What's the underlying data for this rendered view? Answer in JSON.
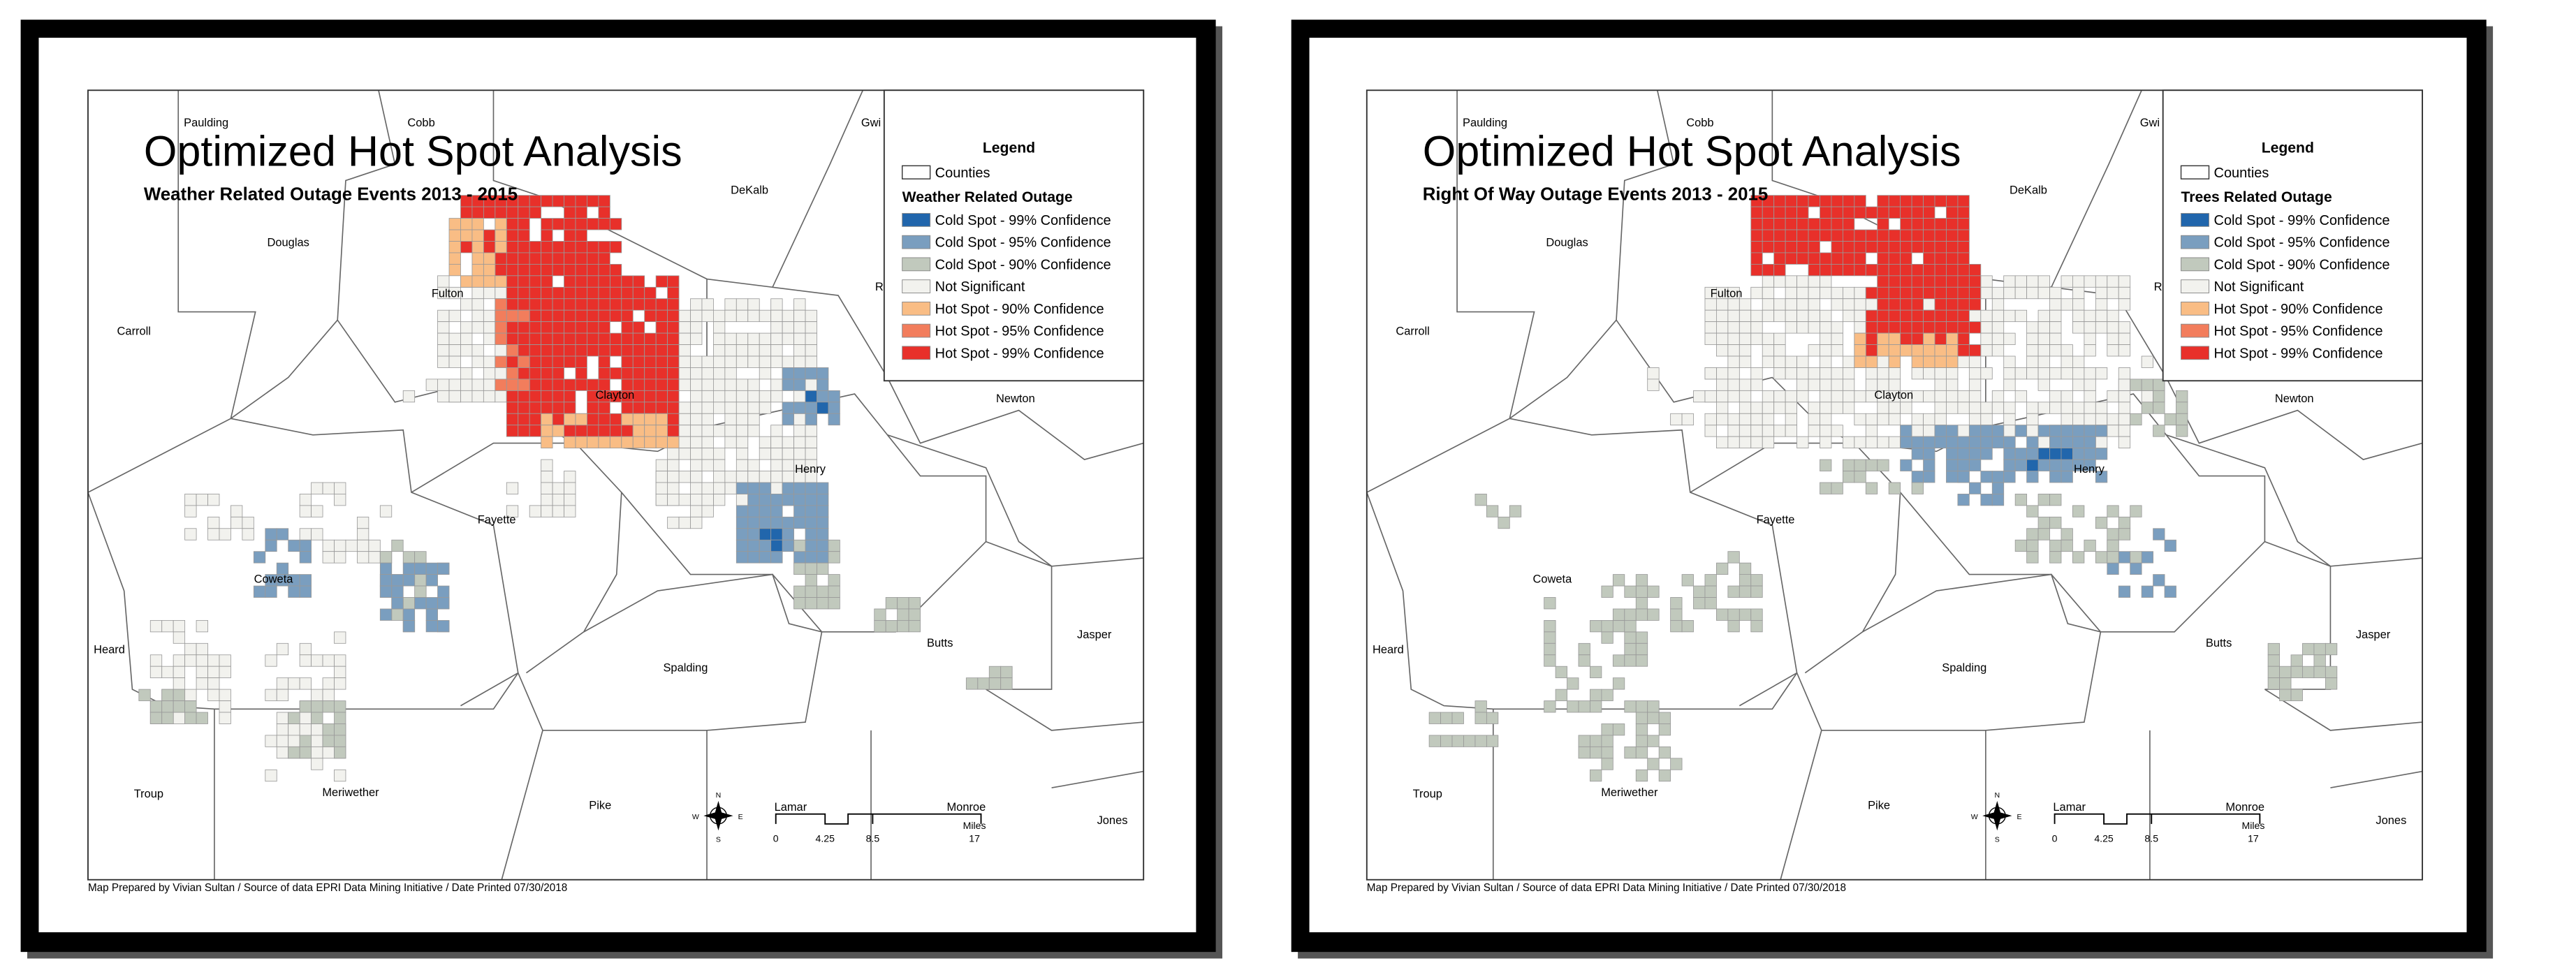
{
  "panels": [
    {
      "title": "Optimized Hot Spot Analysis",
      "subtitle": "Weather Related Outage Events 2013 - 2015",
      "legend": {
        "title": "Legend",
        "counties": "Counties",
        "layer_title": "Weather Related Outage",
        "items": [
          {
            "label": "Cold Spot - 99% Confidence",
            "color": "#2166ac"
          },
          {
            "label": "Cold Spot - 95% Confidence",
            "color": "#7a9ebf"
          },
          {
            "label": "Cold Spot - 90% Confidence",
            "color": "#c1c9bd"
          },
          {
            "label": "Not Significant",
            "color": "#f2f2ee"
          },
          {
            "label": "Hot Spot - 90% Confidence",
            "color": "#f9bd85"
          },
          {
            "label": "Hot Spot - 95% Confidence",
            "color": "#f27d5c"
          },
          {
            "label": "Hot Spot - 99% Confidence",
            "color": "#e8302a"
          }
        ]
      },
      "counties": [
        "Paulding",
        "Cobb",
        "Gwi",
        "DeKalb",
        "Douglas",
        "Fulton",
        "Carroll",
        "Clayton",
        "Newton",
        "Henry",
        "Fayette",
        "Coweta",
        "Heard",
        "Spalding",
        "Butts",
        "Jasper",
        "Troup",
        "Meriwether",
        "Pike",
        "Lamar",
        "Monroe",
        "Jones",
        "R"
      ],
      "scale": {
        "ticks": [
          "0",
          "4.25",
          "8.5",
          "17"
        ],
        "unit": "Miles"
      },
      "compass": {
        "n": "N",
        "s": "S",
        "e": "E",
        "w": "W"
      },
      "footer": "Map Prepared by Vivian Sultan / Source of data EPRI Data Mining Initiative / Date Printed 07/30/2018"
    },
    {
      "title": "Optimized Hot Spot Analysis",
      "subtitle": "Right Of Way Outage Events 2013 - 2015",
      "legend": {
        "title": "Legend",
        "counties": "Counties",
        "layer_title": "Trees Related Outage",
        "items": [
          {
            "label": "Cold Spot - 99% Confidence",
            "color": "#2166ac"
          },
          {
            "label": "Cold Spot - 95% Confidence",
            "color": "#7a9ebf"
          },
          {
            "label": "Cold Spot - 90% Confidence",
            "color": "#c1c9bd"
          },
          {
            "label": "Not Significant",
            "color": "#f2f2ee"
          },
          {
            "label": "Hot Spot - 90% Confidence",
            "color": "#f9bd85"
          },
          {
            "label": "Hot Spot - 95% Confidence",
            "color": "#f27d5c"
          },
          {
            "label": "Hot Spot - 99% Confidence",
            "color": "#e8302a"
          }
        ]
      },
      "counties": [
        "Paulding",
        "Cobb",
        "Gwi",
        "DeKalb",
        "Douglas",
        "Fulton",
        "Carroll",
        "Clayton",
        "Newton",
        "Henry",
        "Fayette",
        "Coweta",
        "Heard",
        "Spalding",
        "Butts",
        "Jasper",
        "Troup",
        "Meriwether",
        "Pike",
        "Lamar",
        "Monroe",
        "Jones",
        "R"
      ],
      "scale": {
        "ticks": [
          "0",
          "4.25",
          "8.5",
          "17"
        ],
        "unit": "Miles"
      },
      "compass": {
        "n": "N",
        "s": "S",
        "e": "E",
        "w": "W"
      },
      "footer": "Map Prepared by Vivian Sultan / Source of data EPRI Data Mining Initiative / Date Printed 07/30/2018"
    }
  ]
}
